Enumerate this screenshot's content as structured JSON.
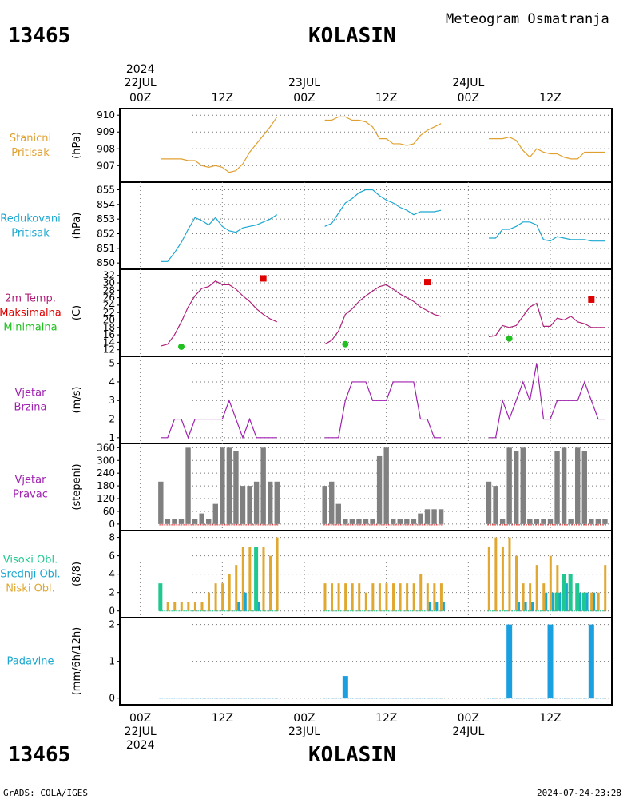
{
  "header": {
    "station_id": "13465",
    "station_name": "KOLASIN",
    "subtitle": "Meteogram Osmatranja",
    "top_year": "2024",
    "bottom_year": "2024",
    "footer_left": "GrADS: COLA/IGES",
    "footer_right": "2024-07-24-23:28"
  },
  "colors": {
    "pressure": "#e0a030",
    "reduced": "#1aa7d0",
    "tmax": "#e00000",
    "tmin": "#20c020",
    "temp_line": "#b0207a",
    "wind": "#a020b0",
    "dir_bar": "#808080",
    "high_cloud": "#20c890",
    "mid_cloud": "#1aa7d0",
    "low_cloud": "#e0a830",
    "precip": "#1aa0e0"
  },
  "chart_data": {
    "type": "line",
    "x_axis": {
      "major_ticks": [
        "00Z",
        "12Z",
        "00Z",
        "12Z",
        "00Z",
        "12Z"
      ],
      "day_labels": [
        "22JUL",
        "23JUL",
        "24JUL"
      ],
      "x_hours_range": [
        -3,
        69
      ]
    },
    "panels": [
      {
        "id": "pressure",
        "labels": [
          "Stanicni",
          "Pritisak"
        ],
        "unit": "(hPa)",
        "ylim": [
          906.3,
          910.2
        ],
        "yticks": [
          907,
          908,
          909,
          910
        ],
        "series": [
          {
            "x": [
              3,
              4,
              5,
              6,
              7,
              8,
              9,
              10,
              11,
              12,
              13,
              14,
              15,
              16,
              17,
              18,
              19,
              20
            ],
            "y": [
              907.4,
              907.4,
              907.4,
              907.4,
              907.3,
              907.3,
              907.0,
              906.9,
              907.0,
              906.9,
              906.6,
              906.7,
              907.1,
              907.8,
              908.3,
              908.8,
              909.3,
              909.9
            ]
          },
          {
            "x": [
              27,
              28,
              29,
              30,
              31,
              32,
              33,
              34,
              35,
              36,
              37,
              38,
              39,
              40,
              41,
              42,
              43,
              44
            ],
            "y": [
              909.7,
              909.7,
              909.9,
              909.9,
              909.7,
              909.7,
              909.6,
              909.3,
              908.6,
              908.6,
              908.3,
              908.3,
              908.2,
              908.3,
              908.8,
              909.1,
              909.3,
              909.5
            ]
          },
          {
            "x": [
              51,
              52,
              53,
              54,
              55,
              56,
              57,
              58,
              59,
              60,
              61,
              62,
              63,
              64,
              65,
              66,
              67,
              68
            ],
            "y": [
              908.6,
              908.6,
              908.6,
              908.7,
              908.5,
              907.9,
              907.5,
              908.0,
              907.8,
              907.7,
              907.7,
              907.5,
              907.4,
              907.4,
              907.8,
              907.8,
              907.8,
              907.8
            ]
          }
        ]
      },
      {
        "id": "reduced",
        "labels": [
          "Redukovani",
          "Pritisak"
        ],
        "unit": "(hPa)",
        "ylim": [
          849.9,
          855.3
        ],
        "yticks": [
          850,
          851,
          852,
          853,
          854,
          855
        ],
        "series": [
          {
            "x": [
              3,
              4,
              5,
              6,
              7,
              8,
              9,
              10,
              11,
              12,
              13,
              14,
              15,
              16,
              17,
              18,
              19,
              20
            ],
            "y": [
              850.1,
              850.1,
              850.7,
              851.4,
              852.3,
              853.1,
              852.9,
              852.6,
              853.1,
              852.5,
              852.2,
              852.1,
              852.4,
              852.5,
              852.6,
              852.8,
              853.0,
              853.3
            ]
          },
          {
            "x": [
              27,
              28,
              29,
              30,
              31,
              32,
              33,
              34,
              35,
              36,
              37,
              38,
              39,
              40,
              41,
              42,
              43,
              44
            ],
            "y": [
              852.5,
              852.7,
              853.4,
              854.1,
              854.4,
              854.8,
              855.0,
              855.0,
              854.6,
              854.3,
              854.1,
              853.8,
              853.6,
              853.3,
              853.5,
              853.5,
              853.5,
              853.6
            ]
          },
          {
            "x": [
              51,
              52,
              53,
              54,
              55,
              56,
              57,
              58,
              59,
              60,
              61,
              62,
              63,
              64,
              65,
              66,
              67,
              68
            ],
            "y": [
              851.7,
              851.7,
              852.3,
              852.3,
              852.5,
              852.8,
              852.8,
              852.6,
              851.6,
              851.5,
              851.8,
              851.7,
              851.6,
              851.6,
              851.6,
              851.5,
              851.5,
              851.5
            ]
          }
        ]
      },
      {
        "id": "temperature",
        "labels": [
          "2m Temp.",
          "Maksimalna",
          "Minimalna"
        ],
        "unit": "(C)",
        "ylim": [
          11.5,
          32.8
        ],
        "yticks": [
          12,
          14,
          16,
          18,
          20,
          22,
          24,
          26,
          28,
          30,
          32
        ],
        "series": [
          {
            "x": [
              3,
              4,
              5,
              6,
              7,
              8,
              9,
              10,
              11,
              12,
              13,
              14,
              15,
              16,
              17,
              18,
              19,
              20
            ],
            "y": [
              13,
              13.5,
              16,
              19.5,
              23.5,
              26.5,
              28.5,
              29,
              30.5,
              29.5,
              29.5,
              28.3,
              26.5,
              25,
              23,
              21.5,
              20.3,
              19.5
            ]
          },
          {
            "x": [
              27,
              28,
              29,
              30,
              31,
              32,
              33,
              34,
              35,
              36,
              37,
              38,
              39,
              40,
              41,
              42,
              43,
              44
            ],
            "y": [
              13.5,
              14.5,
              17,
              21.5,
              23,
              25,
              26.5,
              27.8,
              29,
              29.5,
              28.3,
              27,
              26,
              25,
              23.5,
              22.5,
              21.5,
              21
            ]
          },
          {
            "x": [
              51,
              52,
              53,
              54,
              55,
              56,
              57,
              58,
              59,
              60,
              61,
              62,
              63,
              64,
              65,
              66,
              67,
              68
            ],
            "y": [
              15.5,
              15.8,
              18.5,
              18,
              18.5,
              21,
              23.5,
              24.5,
              18.3,
              18.3,
              20.5,
              20,
              21,
              19.5,
              19,
              18,
              18,
              18
            ]
          }
        ],
        "tmax": [
          {
            "x": 18,
            "y": 31.2
          },
          {
            "x": 42,
            "y": 30.2
          },
          {
            "x": 66,
            "y": 25.5
          }
        ],
        "tmin": [
          {
            "x": 6,
            "y": 12.8
          },
          {
            "x": 30,
            "y": 13.5
          },
          {
            "x": 54,
            "y": 15
          }
        ]
      },
      {
        "id": "wind_speed",
        "labels": [
          "Vjetar",
          "Brzina"
        ],
        "unit": "(m/s)",
        "ylim": [
          0.95,
          5.2
        ],
        "yticks": [
          1,
          2,
          3,
          4,
          5
        ],
        "series": [
          {
            "x": [
              3,
              4,
              5,
              6,
              7,
              8,
              9,
              10,
              11,
              12,
              13,
              14,
              15,
              16,
              17,
              18,
              19,
              20
            ],
            "y": [
              1,
              1,
              2,
              2,
              1,
              2,
              2,
              2,
              2,
              2,
              3,
              2,
              1,
              2,
              1,
              1,
              1,
              1
            ]
          },
          {
            "x": [
              27,
              28,
              29,
              30,
              31,
              32,
              33,
              34,
              35,
              36,
              37,
              38,
              39,
              40,
              41,
              42,
              43,
              44
            ],
            "y": [
              1,
              1,
              1,
              3,
              4,
              4,
              4,
              3,
              3,
              3,
              4,
              4,
              4,
              4,
              2,
              2,
              1,
              1
            ]
          },
          {
            "x": [
              51,
              52,
              53,
              54,
              55,
              56,
              57,
              58,
              59,
              60,
              61,
              62,
              63,
              64,
              65,
              66,
              67,
              68
            ],
            "y": [
              1,
              1,
              3,
              2,
              3,
              4,
              3,
              5,
              2,
              2,
              3,
              3,
              3,
              3,
              4,
              3,
              2,
              2
            ]
          }
        ]
      },
      {
        "id": "wind_dir",
        "labels": [
          "Vjetar",
          "Pravac"
        ],
        "unit": "(stepeni)",
        "ylim": [
          -8,
          365
        ],
        "yticks": [
          0,
          60,
          120,
          180,
          240,
          300,
          360
        ],
        "bars": [
          {
            "x": [
              3,
              4,
              5,
              6,
              7,
              8,
              9,
              10,
              11,
              12,
              13,
              14,
              15,
              16,
              17,
              18,
              19,
              20
            ],
            "y": [
              200,
              25,
              25,
              25,
              360,
              25,
              50,
              25,
              95,
              360,
              360,
              345,
              180,
              180,
              200,
              360,
              200,
              200
            ]
          },
          {
            "x": [
              27,
              28,
              29,
              30,
              31,
              32,
              33,
              34,
              35,
              36,
              37,
              38,
              39,
              40,
              41,
              42,
              43,
              44
            ],
            "y": [
              180,
              200,
              95,
              25,
              25,
              25,
              25,
              25,
              320,
              360,
              25,
              25,
              25,
              25,
              50,
              70,
              70,
              70
            ]
          },
          {
            "x": [
              51,
              52,
              53,
              54,
              55,
              56,
              57,
              58,
              59,
              60,
              61,
              62,
              63,
              64,
              65,
              66,
              67,
              68
            ],
            "y": [
              200,
              180,
              25,
              360,
              345,
              360,
              25,
              25,
              25,
              25,
              345,
              360,
              25,
              360,
              345,
              25,
              25,
              25
            ]
          }
        ]
      },
      {
        "id": "clouds",
        "labels": [
          "Visoki Obl.",
          "Srednji Obl.",
          "Niski Obl."
        ],
        "unit": "(8/8)",
        "ylim": [
          -0.2,
          8.4
        ],
        "yticks": [
          0,
          2,
          4,
          6,
          8
        ],
        "low": [
          {
            "x": [
              3,
              4,
              5,
              6,
              7,
              8,
              9,
              10,
              11,
              12,
              13,
              14,
              15,
              16,
              17,
              18,
              19,
              20
            ],
            "y": [
              0,
              1,
              1,
              1,
              1,
              1,
              1,
              2,
              3,
              3,
              4,
              5,
              7,
              7,
              7,
              7,
              6,
              8
            ]
          },
          {
            "x": [
              27,
              28,
              29,
              30,
              31,
              32,
              33,
              34,
              35,
              36,
              37,
              38,
              39,
              40,
              41,
              42,
              43,
              44
            ],
            "y": [
              3,
              3,
              3,
              3,
              3,
              3,
              2,
              3,
              3,
              3,
              3,
              3,
              3,
              3,
              4,
              3,
              3,
              3
            ]
          },
          {
            "x": [
              51,
              52,
              53,
              54,
              55,
              56,
              57,
              58,
              59,
              60,
              61,
              62,
              63,
              64,
              65,
              66,
              67,
              68
            ],
            "y": [
              7,
              8,
              7,
              8,
              6,
              3,
              3,
              5,
              3,
              6,
              5,
              3,
              3,
              3,
              2,
              2,
              2,
              5
            ]
          }
        ],
        "mid": [
          {
            "x": [
              14,
              15,
              17
            ],
            "y": [
              1,
              2,
              1
            ]
          },
          {
            "x": [
              42,
              43,
              44
            ],
            "y": [
              1,
              1,
              1
            ]
          },
          {
            "x": [
              55,
              56,
              57,
              59,
              60,
              61,
              62,
              64,
              65,
              66
            ],
            "y": [
              1,
              1,
              1,
              2,
              2,
              2,
              3,
              2,
              2,
              2
            ]
          }
        ],
        "high": [
          {
            "x": [
              3,
              17
            ],
            "y": [
              3,
              7
            ]
          },
          {
            "x": [],
            "y": []
          },
          {
            "x": [
              61,
              62,
              63,
              64,
              65
            ],
            "y": [
              2,
              4,
              4,
              3,
              2
            ]
          }
        ]
      },
      {
        "id": "precip",
        "labels": [
          "Padavine"
        ],
        "unit": "(mm/6h/12h)",
        "ylim": [
          -0.05,
          2.1
        ],
        "yticks": [
          0,
          1,
          2
        ],
        "bars": [
          {
            "x": [
              30
            ],
            "y": [
              0.6
            ]
          },
          {
            "x": [
              54,
              60,
              66
            ],
            "y": [
              2,
              2,
              2
            ]
          }
        ]
      }
    ]
  }
}
